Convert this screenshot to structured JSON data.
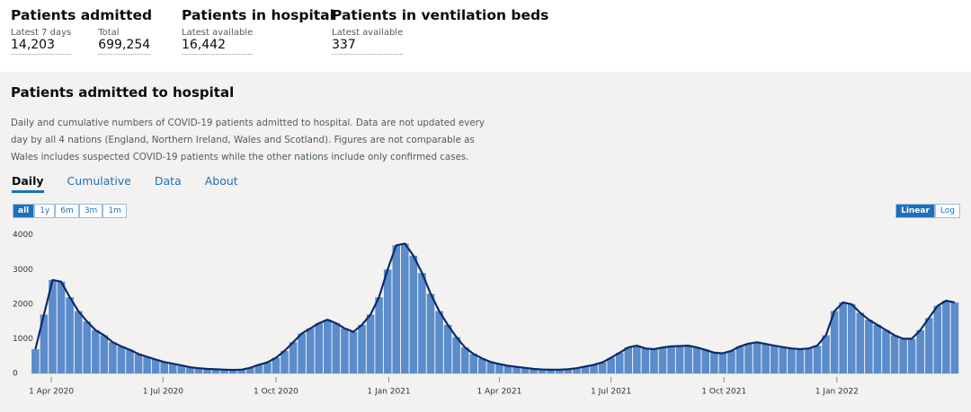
{
  "stats": [
    {
      "title": "Patients admitted",
      "items": [
        {
          "label": "Latest 7 days",
          "value": "14,203"
        },
        {
          "label": "Total",
          "value": "699,254"
        }
      ]
    },
    {
      "title": "Patients in hospital",
      "items": [
        {
          "label": "Latest available",
          "value": "16,442"
        }
      ]
    },
    {
      "title": "Patients in ventilation beds",
      "items": [
        {
          "label": "Latest available",
          "value": "337"
        }
      ]
    }
  ],
  "card": {
    "title": "Patients admitted to hospital",
    "description": "Daily and cumulative numbers of COVID-19 patients admitted to hospital. Data are not updated every day by all 4 nations (England, Northern Ireland, Wales and Scotland). Figures are not comparable as Wales includes suspected COVID-19 patients while the other nations include only confirmed cases.",
    "tabs": [
      "Daily",
      "Cumulative",
      "Data",
      "About"
    ],
    "ranges": [
      "all",
      "1y",
      "6m",
      "3m",
      "1m"
    ],
    "scales": [
      "Linear",
      "Log"
    ]
  },
  "chart_data": {
    "type": "bar",
    "color": "#5b8ccb",
    "line_color": "#0b2a66",
    "x": [
      "2020-03-19",
      "2020-03-26",
      "2020-04-02",
      "2020-04-09",
      "2020-04-16",
      "2020-04-23",
      "2020-04-30",
      "2020-05-07",
      "2020-05-14",
      "2020-05-21",
      "2020-05-28",
      "2020-06-04",
      "2020-06-11",
      "2020-06-18",
      "2020-06-25",
      "2020-07-02",
      "2020-07-09",
      "2020-07-16",
      "2020-07-23",
      "2020-07-30",
      "2020-08-06",
      "2020-08-13",
      "2020-08-20",
      "2020-08-27",
      "2020-09-03",
      "2020-09-10",
      "2020-09-17",
      "2020-09-24",
      "2020-10-01",
      "2020-10-08",
      "2020-10-15",
      "2020-10-22",
      "2020-10-29",
      "2020-11-05",
      "2020-11-12",
      "2020-11-19",
      "2020-11-26",
      "2020-12-03",
      "2020-12-10",
      "2020-12-17",
      "2020-12-24",
      "2020-12-31",
      "2021-01-07",
      "2021-01-14",
      "2021-01-21",
      "2021-01-28",
      "2021-02-04",
      "2021-02-11",
      "2021-02-18",
      "2021-02-25",
      "2021-03-04",
      "2021-03-11",
      "2021-03-18",
      "2021-03-25",
      "2021-04-01",
      "2021-04-08",
      "2021-04-15",
      "2021-04-22",
      "2021-04-29",
      "2021-05-06",
      "2021-05-13",
      "2021-05-20",
      "2021-05-27",
      "2021-06-03",
      "2021-06-10",
      "2021-06-17",
      "2021-06-24",
      "2021-07-01",
      "2021-07-08",
      "2021-07-15",
      "2021-07-22",
      "2021-07-29",
      "2021-08-05",
      "2021-08-12",
      "2021-08-19",
      "2021-08-26",
      "2021-09-02",
      "2021-09-09",
      "2021-09-16",
      "2021-09-23",
      "2021-09-30",
      "2021-10-07",
      "2021-10-14",
      "2021-10-21",
      "2021-10-28",
      "2021-11-04",
      "2021-11-11",
      "2021-11-18",
      "2021-11-25",
      "2021-12-02",
      "2021-12-09",
      "2021-12-16",
      "2021-12-23",
      "2021-12-30",
      "2022-01-06",
      "2022-01-13",
      "2022-01-20",
      "2022-01-27",
      "2022-02-03",
      "2022-02-10",
      "2022-02-17",
      "2022-02-24",
      "2022-03-03",
      "2022-03-10",
      "2022-03-17",
      "2022-03-24",
      "2022-03-31",
      "2022-04-07"
    ],
    "values": [
      700,
      1700,
      2700,
      2650,
      2200,
      1800,
      1500,
      1250,
      1100,
      900,
      780,
      680,
      560,
      480,
      400,
      330,
      280,
      230,
      180,
      150,
      130,
      120,
      110,
      100,
      110,
      160,
      250,
      320,
      450,
      650,
      900,
      1150,
      1300,
      1450,
      1550,
      1450,
      1300,
      1200,
      1400,
      1700,
      2200,
      3000,
      3700,
      3750,
      3400,
      2900,
      2300,
      1800,
      1400,
      1050,
      750,
      560,
      430,
      330,
      270,
      220,
      190,
      160,
      130,
      115,
      105,
      110,
      120,
      150,
      200,
      250,
      320,
      450,
      600,
      750,
      800,
      720,
      700,
      750,
      780,
      790,
      800,
      750,
      680,
      600,
      580,
      650,
      780,
      860,
      900,
      850,
      800,
      760,
      720,
      700,
      720,
      800,
      1100,
      1800,
      2050,
      2000,
      1750,
      1550,
      1400,
      1250,
      1100,
      1000,
      1000,
      1250,
      1600,
      1950,
      2100,
      2050
    ],
    "xlim": [
      "2020-03-18",
      "2022-04-10"
    ],
    "xticks": [
      {
        "value": "2020-04-01",
        "label": "1 Apr 2020"
      },
      {
        "value": "2020-07-01",
        "label": "1 Jul 2020"
      },
      {
        "value": "2020-10-01",
        "label": "1 Oct 2020"
      },
      {
        "value": "2021-01-01",
        "label": "1 Jan 2021"
      },
      {
        "value": "2021-04-01",
        "label": "1 Apr 2021"
      },
      {
        "value": "2021-07-01",
        "label": "1 Jul 2021"
      },
      {
        "value": "2021-10-01",
        "label": "1 Oct 2021"
      },
      {
        "value": "2022-01-01",
        "label": "1 Jan 2022"
      }
    ],
    "ylim": [
      0,
      4200
    ],
    "yticks": [
      0,
      1000,
      2000,
      3000,
      4000
    ]
  }
}
